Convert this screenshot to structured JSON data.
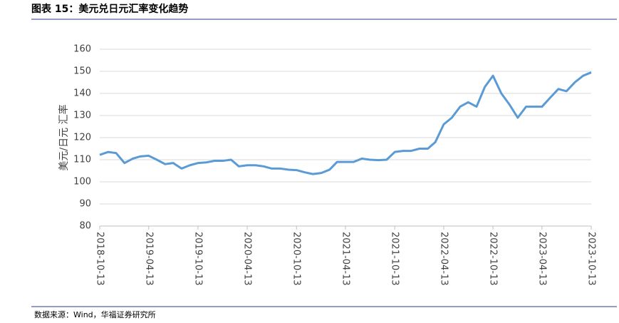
{
  "chart_data": {
    "type": "line",
    "title": "图表 15：美元兑日元汇率变化趋势",
    "source": "数据来源：Wind，华福证券研究所",
    "y_label": "美元/日元 汇率",
    "x": [
      "2018-10-13",
      "2018-11-13",
      "2018-12-13",
      "2019-01-13",
      "2019-02-13",
      "2019-03-13",
      "2019-04-13",
      "2019-05-13",
      "2019-06-13",
      "2019-07-13",
      "2019-08-13",
      "2019-09-13",
      "2019-10-13",
      "2019-11-13",
      "2019-12-13",
      "2020-01-13",
      "2020-02-13",
      "2020-03-13",
      "2020-04-13",
      "2020-05-13",
      "2020-06-13",
      "2020-07-13",
      "2020-08-13",
      "2020-09-13",
      "2020-10-13",
      "2020-11-13",
      "2020-12-13",
      "2021-01-13",
      "2021-02-13",
      "2021-03-13",
      "2021-04-13",
      "2021-05-13",
      "2021-06-13",
      "2021-07-13",
      "2021-08-13",
      "2021-09-13",
      "2021-10-13",
      "2021-11-13",
      "2021-12-13",
      "2022-01-13",
      "2022-02-13",
      "2022-03-13",
      "2022-04-13",
      "2022-05-13",
      "2022-06-13",
      "2022-07-13",
      "2022-08-13",
      "2022-09-13",
      "2022-10-13",
      "2022-11-13",
      "2022-12-13",
      "2023-01-13",
      "2023-02-13",
      "2023-03-13",
      "2023-04-13",
      "2023-05-13",
      "2023-06-13",
      "2023-07-13",
      "2023-08-13",
      "2023-09-13",
      "2023-10-13"
    ],
    "series": [
      {
        "name": "美元/日元",
        "color": "#5b9bd5",
        "values": [
          112.2,
          113.5,
          113,
          108.5,
          110.5,
          111.5,
          111.8,
          110,
          108,
          108.5,
          106,
          107.5,
          108.5,
          108.8,
          109.5,
          109.5,
          110,
          107,
          107.5,
          107.5,
          107,
          106,
          106,
          105.5,
          105.3,
          104.3,
          103.5,
          104,
          105.5,
          109,
          109,
          109,
          110.5,
          110,
          109.8,
          110,
          113.5,
          114,
          114,
          115,
          115,
          118,
          126,
          129,
          134,
          136,
          134,
          143,
          148,
          140,
          135,
          129,
          134,
          134,
          134,
          138,
          142,
          141,
          145,
          148,
          149.5
        ]
      }
    ],
    "xlim": [
      "2018-10-13",
      "2023-10-13"
    ],
    "xticks": [
      "2018-10-13",
      "2019-04-13",
      "2019-10-13",
      "2020-04-13",
      "2020-10-13",
      "2021-04-13",
      "2021-10-13",
      "2022-04-13",
      "2022-10-13",
      "2023-04-13",
      "2023-10-13"
    ],
    "ylim": [
      80,
      160
    ],
    "yticks": [
      80,
      90,
      100,
      110,
      120,
      130,
      140,
      150,
      160
    ],
    "grid": true
  }
}
